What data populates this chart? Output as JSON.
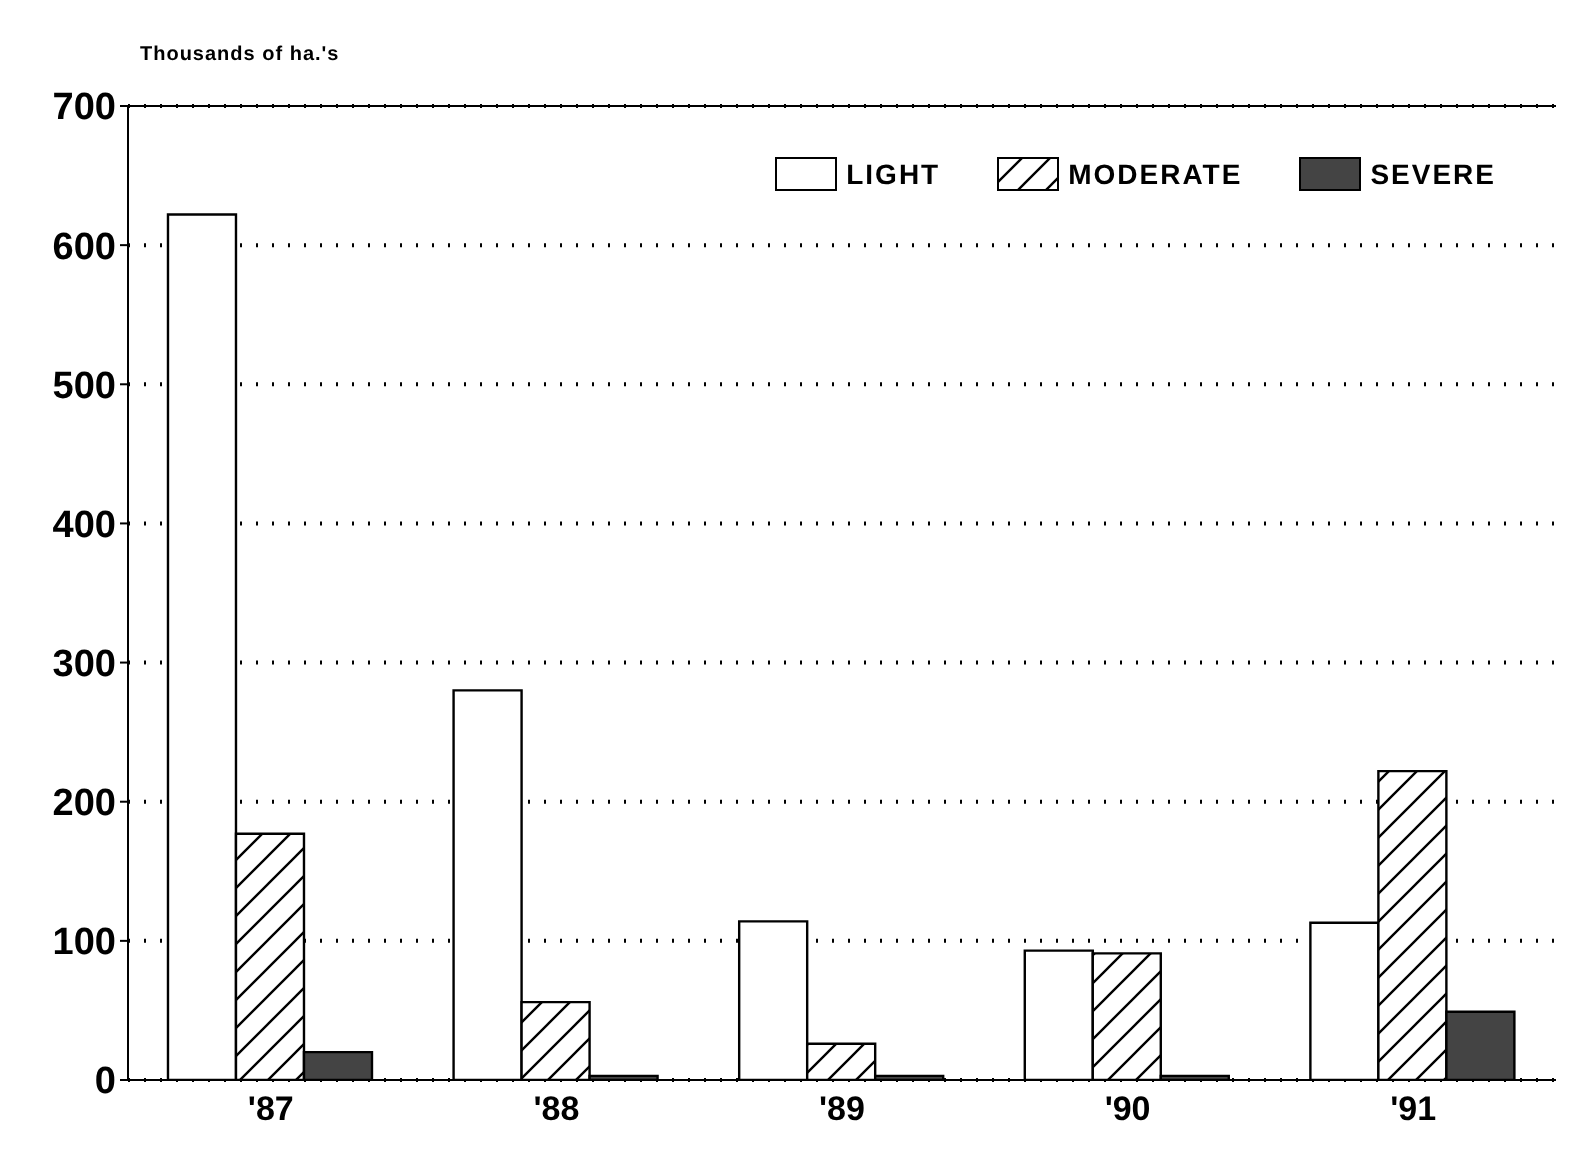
{
  "chart_data": {
    "type": "bar",
    "ylabel": "Thousands of ha.'s",
    "categories": [
      "'87",
      "'88",
      "'89",
      "'90",
      "'91"
    ],
    "series": [
      {
        "name": "LIGHT",
        "color": "#ffffff",
        "values": [
          622,
          280,
          114,
          93,
          113
        ]
      },
      {
        "name": "MODERATE",
        "color": "#000000",
        "values": [
          177,
          56,
          26,
          91,
          222
        ]
      },
      {
        "name": "SEVERE",
        "color": "#444444",
        "values": [
          20,
          3,
          3,
          3,
          49
        ]
      }
    ],
    "ylim": [
      0,
      700
    ],
    "yticks": [
      0,
      100,
      200,
      300,
      400,
      500,
      600,
      700
    ],
    "grid": "y",
    "legend": "top right"
  }
}
